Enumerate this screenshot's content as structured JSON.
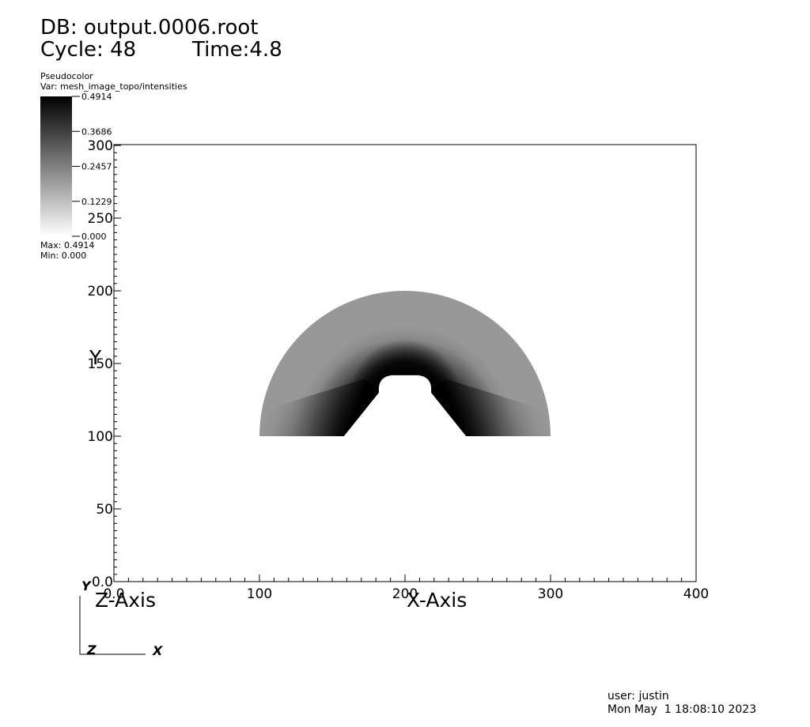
{
  "header": {
    "db_label": "DB: output.0006.root",
    "cycle_label": "Cycle: 48",
    "time_label": "Time:4.8"
  },
  "legend": {
    "plot_type": "Pseudocolor",
    "var_label": "Var: mesh_image_topo/intensities",
    "ticks": [
      "0.4914",
      "0.3686",
      "0.2457",
      "0.1229",
      "0.000"
    ],
    "max_label": "Max:  0.4914",
    "min_label": "Min:  0.000",
    "color_high": "#000000",
    "color_low": "#ffffff"
  },
  "triad": {
    "y_label": "Y",
    "z_label": "Z",
    "x_label": "X"
  },
  "footer": {
    "user": "user: justin",
    "date": "Mon May  1 18:08:10 2023"
  },
  "chart_data": {
    "type": "heatmap",
    "title": "",
    "xlabel": "X-Axis",
    "ylabel": "Y",
    "zlabel": "Z-Axis",
    "xlim": [
      0,
      400
    ],
    "ylim": [
      0,
      300
    ],
    "x_ticks": [
      "0.0",
      "100",
      "200",
      "300",
      "400"
    ],
    "y_ticks": [
      "0.0",
      "50",
      "100",
      "150",
      "200",
      "250",
      "300"
    ],
    "x_tick_values": [
      0,
      100,
      200,
      300,
      400
    ],
    "y_tick_values": [
      0,
      50,
      100,
      150,
      200,
      250,
      300
    ],
    "colormap": "gray (0.000 = white, 0.4914 = black)",
    "value_range": [
      0.0,
      0.4914
    ],
    "field": {
      "shape": "half-annulus",
      "center": [
        200,
        100
      ],
      "outer_radius": 100,
      "inner_top_y": 142,
      "bottom_y": 100,
      "bottom_inner_left_x": 158,
      "bottom_inner_right_x": 242,
      "background_value": 0.2,
      "peak_value": 0.4914
    }
  }
}
